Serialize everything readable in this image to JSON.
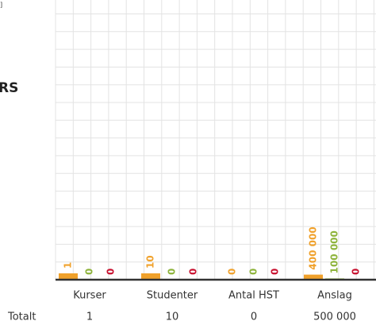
{
  "chart_data": {
    "type": "bar",
    "corner_text": "]",
    "side_text": "RS",
    "categories": [
      "Kurser",
      "Studenter",
      "Antal HST",
      "Anslag"
    ],
    "series": [
      {
        "color": "#f0a12b",
        "values": [
          1,
          10,
          0,
          400000
        ],
        "value_labels": [
          "1",
          "10",
          "0",
          "400 000"
        ]
      },
      {
        "color": "#8db33a",
        "values": [
          0,
          0,
          0,
          100000
        ],
        "value_labels": [
          "0",
          "0",
          "0",
          "100 000"
        ]
      },
      {
        "color": "#c8102e",
        "values": [
          0,
          0,
          0,
          0
        ],
        "value_labels": [
          "0",
          "0",
          "0",
          "0"
        ]
      }
    ],
    "total_title": "Totalt",
    "totals": [
      1,
      10,
      0,
      500000
    ],
    "total_labels": [
      "1",
      "10",
      "0",
      "500 000"
    ],
    "grid": true
  }
}
